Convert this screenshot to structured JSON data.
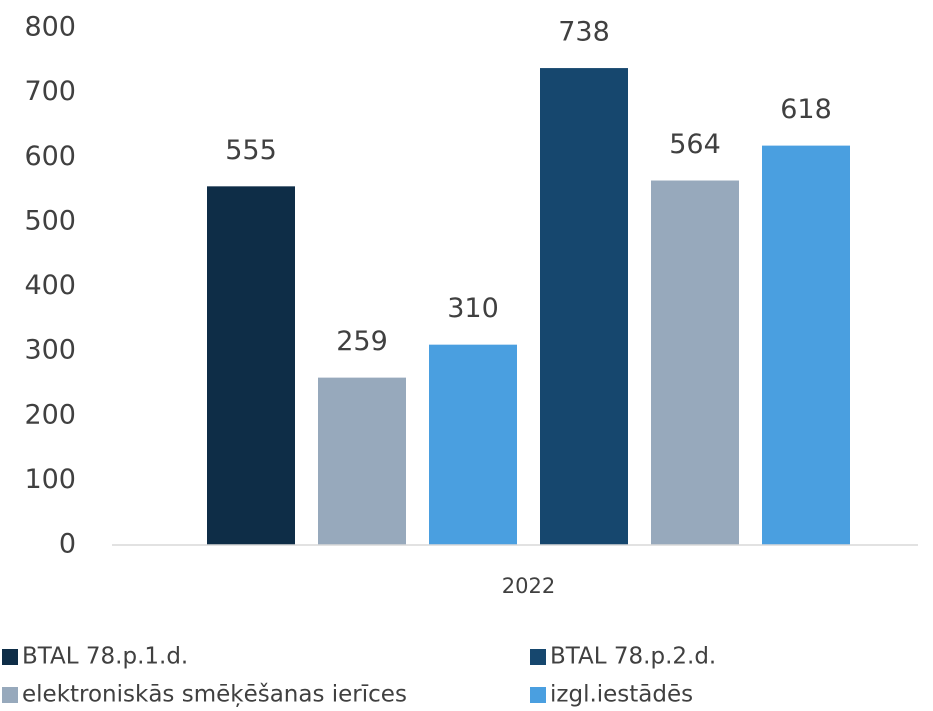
{
  "chart_data": {
    "type": "bar",
    "categories": [
      "2022"
    ],
    "bars": [
      {
        "value": 555,
        "color": "#0e2d47"
      },
      {
        "value": 259,
        "color": "#97a9bc"
      },
      {
        "value": 310,
        "color": "#4a9fe0"
      },
      {
        "value": 738,
        "color": "#16476e"
      },
      {
        "value": 564,
        "color": "#97a9bc"
      },
      {
        "value": 618,
        "color": "#4a9fe0"
      }
    ],
    "legend": [
      {
        "name": "BTAL 78.p.1.d.",
        "color": "#0e2d47"
      },
      {
        "name": "BTAL 78.p.2.d.",
        "color": "#16476e"
      },
      {
        "name": "elektroniskās smēķēšanas ierīces",
        "color": "#97a9bc"
      },
      {
        "name": "izgl.iestādēs",
        "color": "#4a9fe0"
      }
    ],
    "ylim": [
      0,
      800
    ],
    "yticks": [
      0,
      100,
      200,
      300,
      400,
      500,
      600,
      700,
      800
    ],
    "grid": false,
    "data_labels": true
  }
}
